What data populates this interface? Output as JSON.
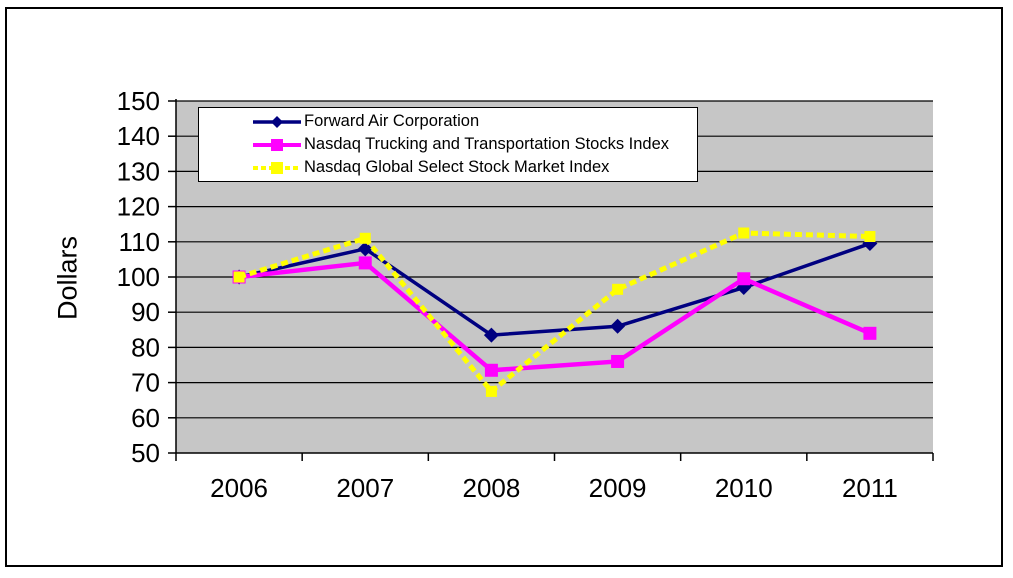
{
  "page": {
    "background": "#ffffff",
    "border_color": "#000000"
  },
  "chart_data": {
    "type": "line",
    "categories": [
      "2006",
      "2007",
      "2008",
      "2009",
      "2010",
      "2011"
    ],
    "series": [
      {
        "name": "Forward Air Corporation",
        "color": "#000080",
        "marker": "diamond",
        "line_style": "solid",
        "values": [
          100,
          108,
          83.5,
          86,
          97,
          109.5
        ]
      },
      {
        "name": "Nasdaq Trucking and Transportation Stocks Index",
        "color": "#ff00ff",
        "marker": "square",
        "line_style": "solid",
        "values": [
          100,
          104,
          73.5,
          76,
          99.5,
          84
        ]
      },
      {
        "name": "Nasdaq Global Select Stock Market Index",
        "color": "#ffff00",
        "marker": "square",
        "line_style": "dashed",
        "values": [
          100,
          111,
          67.5,
          96.5,
          112.5,
          111.5
        ]
      }
    ],
    "title": "",
    "xlabel": "",
    "ylabel": "Dollars",
    "ylim": [
      50,
      150
    ],
    "yticks": [
      50,
      60,
      70,
      80,
      90,
      100,
      110,
      120,
      130,
      140,
      150
    ],
    "plot_background": "#c6c6c6",
    "gridline_color": "#000000",
    "grid": true,
    "legend_position": "top-left-inside"
  }
}
